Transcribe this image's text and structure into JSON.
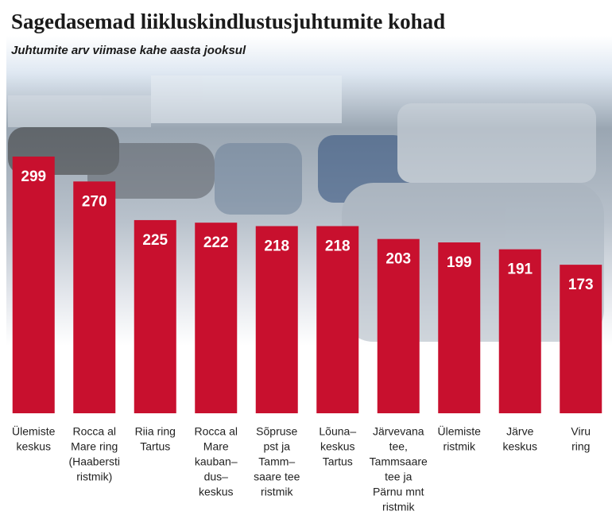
{
  "chart_data": {
    "type": "bar",
    "title": "Sagedasemad liikluskindlustusjuhtumite kohad",
    "subtitle": "Juhtumite arv viimase kahe aasta jooksul",
    "categories": [
      [
        "Ülemiste",
        "keskus"
      ],
      [
        "Rocca al",
        "Mare ring",
        "(Haabersti",
        "ristmik)"
      ],
      [
        "Riia ring",
        "Tartus"
      ],
      [
        "Rocca al",
        "Mare",
        "kauban–",
        "dus–",
        "keskus"
      ],
      [
        "Sõpruse",
        "pst ja",
        "Tamm–",
        "saare tee",
        "ristmik"
      ],
      [
        "Lõuna–",
        "keskus",
        "Tartus"
      ],
      [
        "Järvevana",
        "tee,",
        "Tammsaare",
        "tee ja",
        "Pärnu mnt",
        "ristmik"
      ],
      [
        "Ülemiste",
        "ristmik"
      ],
      [
        "Järve",
        "keskus"
      ],
      [
        "Viru",
        "ring"
      ]
    ],
    "values": [
      299,
      270,
      225,
      222,
      218,
      218,
      203,
      199,
      191,
      173
    ],
    "color": "#c8102e"
  }
}
